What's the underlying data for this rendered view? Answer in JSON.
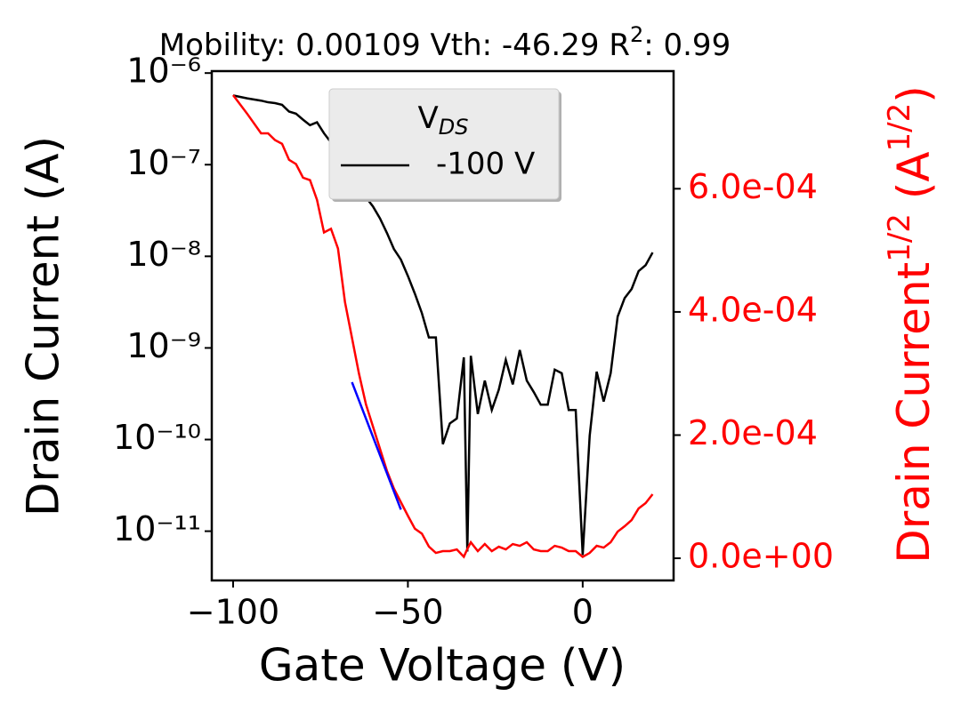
{
  "chart_data": {
    "type": "line",
    "title": [
      "Mobility: 0.00109 Vth: -46.29 R",
      "2",
      ": 0.99"
    ],
    "xlabel": "Gate Voltage (V)",
    "ylabel": "Drain Current (A)",
    "y2label": [
      "Drain Current",
      "1/2",
      " (A",
      "1/2",
      ")"
    ],
    "legend_title": [
      "V",
      "DS"
    ],
    "legend_loc": "upper center",
    "xlim": [
      -106.1,
      26
    ],
    "xticks": [
      {
        "value": -100,
        "label": "−100"
      },
      {
        "value": -50,
        "label": "−50"
      },
      0
    ],
    "ylog": true,
    "ylim": [
      2.9e-12,
      1.05e-06
    ],
    "yticks": [
      {
        "value": 1e-06,
        "label": "10⁻⁶"
      },
      {
        "value": 1e-07,
        "label": "10⁻⁷"
      },
      {
        "value": 1e-08,
        "label": "10⁻⁸"
      },
      {
        "value": 1e-09,
        "label": "10⁻⁹"
      },
      {
        "value": 1e-10,
        "label": "10⁻¹⁰"
      },
      {
        "value": 1e-11,
        "label": "10⁻¹¹"
      }
    ],
    "y2lim": [
      -3.6e-05,
      0.000791
    ],
    "y2ticks": [
      {
        "value": 0,
        "label": "0.0e+00"
      },
      {
        "value": 0.0002,
        "label": "2.0e-04"
      },
      {
        "value": 0.0004,
        "label": "4.0e-04"
      },
      {
        "value": 0.0006,
        "label": "6.0e-04"
      }
    ],
    "y2color": "#ff0000",
    "x": [
      -100,
      -96,
      -92,
      -90,
      -88,
      -86,
      -84,
      -82,
      -80,
      -78,
      -76,
      -74,
      -72,
      -70,
      -68,
      -66,
      -64,
      -62,
      -60,
      -58,
      -56,
      -54,
      -52,
      -50,
      -48,
      -46,
      -44,
      -42,
      -40,
      -38,
      -36,
      -34,
      -33,
      -32,
      -30,
      -28,
      -26,
      -24,
      -22,
      -20,
      -18,
      -16,
      -14,
      -12,
      -10,
      -8,
      -6,
      -4,
      -2,
      0,
      2,
      4,
      6,
      8,
      10,
      12,
      14,
      16,
      18,
      20
    ],
    "series": [
      {
        "name": "-100 V",
        "color": "#000000",
        "values": [
          5.7e-07,
          5.3e-07,
          5e-07,
          4.8e-07,
          4.7e-07,
          4.5e-07,
          3.8e-07,
          3.6e-07,
          3.1e-07,
          2.7e-07,
          2.9e-07,
          2.2e-07,
          1.75e-07,
          1.25e-07,
          9e-08,
          7.2e-08,
          5.7e-08,
          4.4e-08,
          3.5e-08,
          2.6e-08,
          1.8e-08,
          1.2e-08,
          9.2e-09,
          6.1e-09,
          3.9e-09,
          2.4e-09,
          1.3e-09,
          1.3e-09,
          8.9e-11,
          1.5e-10,
          1.7e-10,
          7.9e-10,
          6e-12,
          8.2e-10,
          1.9e-10,
          4.4e-10,
          2.1e-10,
          3.5e-10,
          7.4e-10,
          4e-10,
          9.5e-10,
          4.4e-10,
          3.3e-10,
          2.4e-10,
          2.4e-10,
          5.8e-10,
          5.3e-10,
          2.1e-10,
          2.1e-10,
          5.5e-12,
          1.1e-10,
          5.5e-10,
          2.6e-10,
          5.3e-10,
          2.2e-09,
          3.5e-09,
          4.4e-09,
          6.9e-09,
          8e-09,
          1.1e-08
        ]
      },
      {
        "color": "#ff0000",
        "axis": "y2",
        "values": [
          0.000752,
          0.000722,
          0.00069,
          0.00069,
          0.000679,
          0.000673,
          0.000647,
          0.00064,
          0.000618,
          0.000614,
          0.000582,
          0.000529,
          0.000535,
          0.000503,
          0.000416,
          0.000358,
          0.0003,
          0.00025,
          0.000214,
          0.000178,
          0.000142,
          0.000113,
          9.1e-05,
          6.9e-05,
          4.8e-05,
          4e-05,
          1.9e-05,
          8.7e-06,
          1.16e-05,
          1.16e-05,
          1.44e-05,
          2.4e-06,
          1.5e-05,
          2.6e-05,
          1.16e-05,
          2.31e-05,
          1.16e-05,
          1.88e-05,
          1.44e-05,
          2.31e-05,
          2.02e-05,
          2.6e-05,
          1.44e-05,
          1.16e-05,
          1.16e-05,
          2.02e-05,
          1.73e-05,
          1.16e-05,
          1.16e-05,
          2.3e-06,
          8.7e-06,
          2.02e-05,
          1.73e-05,
          2.6e-05,
          4.33e-05,
          5.2e-05,
          6.21e-05,
          8.09e-05,
          8.96e-05,
          0.000104
        ]
      },
      {
        "color": "#0000ff",
        "axis": "y2",
        "x": [
          -66,
          -52
        ],
        "values": [
          0.000286,
          7.9e-05
        ]
      }
    ]
  }
}
